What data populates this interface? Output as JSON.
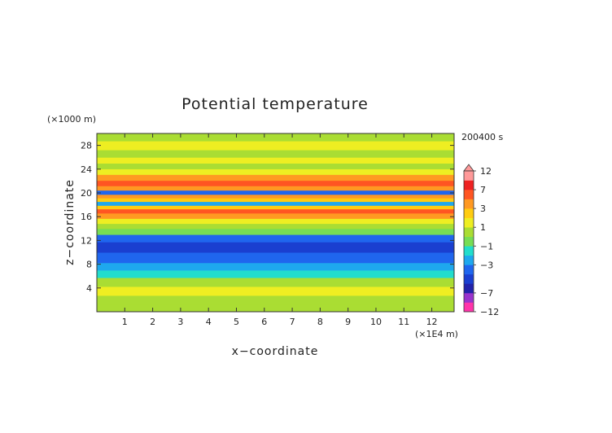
{
  "chart_data": {
    "type": "heatmap",
    "title": "Potential temperature",
    "xlabel": "x−coordinate",
    "ylabel": "z−coordinate",
    "x_unit": "(×1E4 m)",
    "y_unit": "(×1000 m)",
    "time_label": "200400 s",
    "xlim": [
      0,
      12.8
    ],
    "ylim": [
      0,
      30
    ],
    "x_ticks": [
      1,
      2,
      3,
      4,
      5,
      6,
      7,
      8,
      9,
      10,
      11,
      12
    ],
    "y_ticks": [
      4,
      8,
      12,
      16,
      20,
      24,
      28
    ],
    "colorbar": {
      "levels": [
        -12,
        -9,
        -7,
        -5,
        -4,
        -3,
        -2,
        -1,
        0,
        1,
        2,
        3,
        5,
        7,
        9,
        12
      ],
      "tick_labels": [
        "12",
        "7",
        "3",
        "1",
        "−1",
        "−3",
        "−7",
        "−12"
      ],
      "tick_values": [
        12,
        7,
        3,
        1,
        -1,
        -3,
        -7,
        -12
      ],
      "colors": [
        "#ff33aa",
        "#9933cc",
        "#2222aa",
        "#1a3fd0",
        "#1f66ee",
        "#1ea8ee",
        "#22ddcc",
        "#77dd55",
        "#aadd33",
        "#eeee22",
        "#ffcc11",
        "#ff9922",
        "#ff5522",
        "#ee2222",
        "#ff9999"
      ]
    },
    "profile": [
      {
        "z": 0.5,
        "value": 0.3
      },
      {
        "z": 2.0,
        "value": 0.5
      },
      {
        "z": 3.5,
        "value": 1.5
      },
      {
        "z": 5.0,
        "value": 0.6
      },
      {
        "z": 6.5,
        "value": -1.2
      },
      {
        "z": 7.5,
        "value": -2.6
      },
      {
        "z": 9.0,
        "value": -3.8
      },
      {
        "z": 11.0,
        "value": -4.7
      },
      {
        "z": 12.5,
        "value": -3.2
      },
      {
        "z": 13.5,
        "value": -0.5
      },
      {
        "z": 14.5,
        "value": 0.5
      },
      {
        "z": 15.2,
        "value": 1.5
      },
      {
        "z": 16.2,
        "value": 3.5
      },
      {
        "z": 17.0,
        "value": 5.5
      },
      {
        "z": 17.6,
        "value": 2.0
      },
      {
        "z": 18.2,
        "value": -3.0
      },
      {
        "z": 18.9,
        "value": 2.0
      },
      {
        "z": 19.4,
        "value": 4.5
      },
      {
        "z": 20.1,
        "value": -4.0
      },
      {
        "z": 20.8,
        "value": 3.0
      },
      {
        "z": 21.6,
        "value": 6.0
      },
      {
        "z": 22.6,
        "value": 3.0
      },
      {
        "z": 23.6,
        "value": 1.5
      },
      {
        "z": 24.5,
        "value": 0.2
      },
      {
        "z": 25.5,
        "value": 1.3
      },
      {
        "z": 26.5,
        "value": 0.4
      },
      {
        "z": 28.0,
        "value": 1.2
      },
      {
        "z": 29.5,
        "value": 0.3
      }
    ]
  }
}
